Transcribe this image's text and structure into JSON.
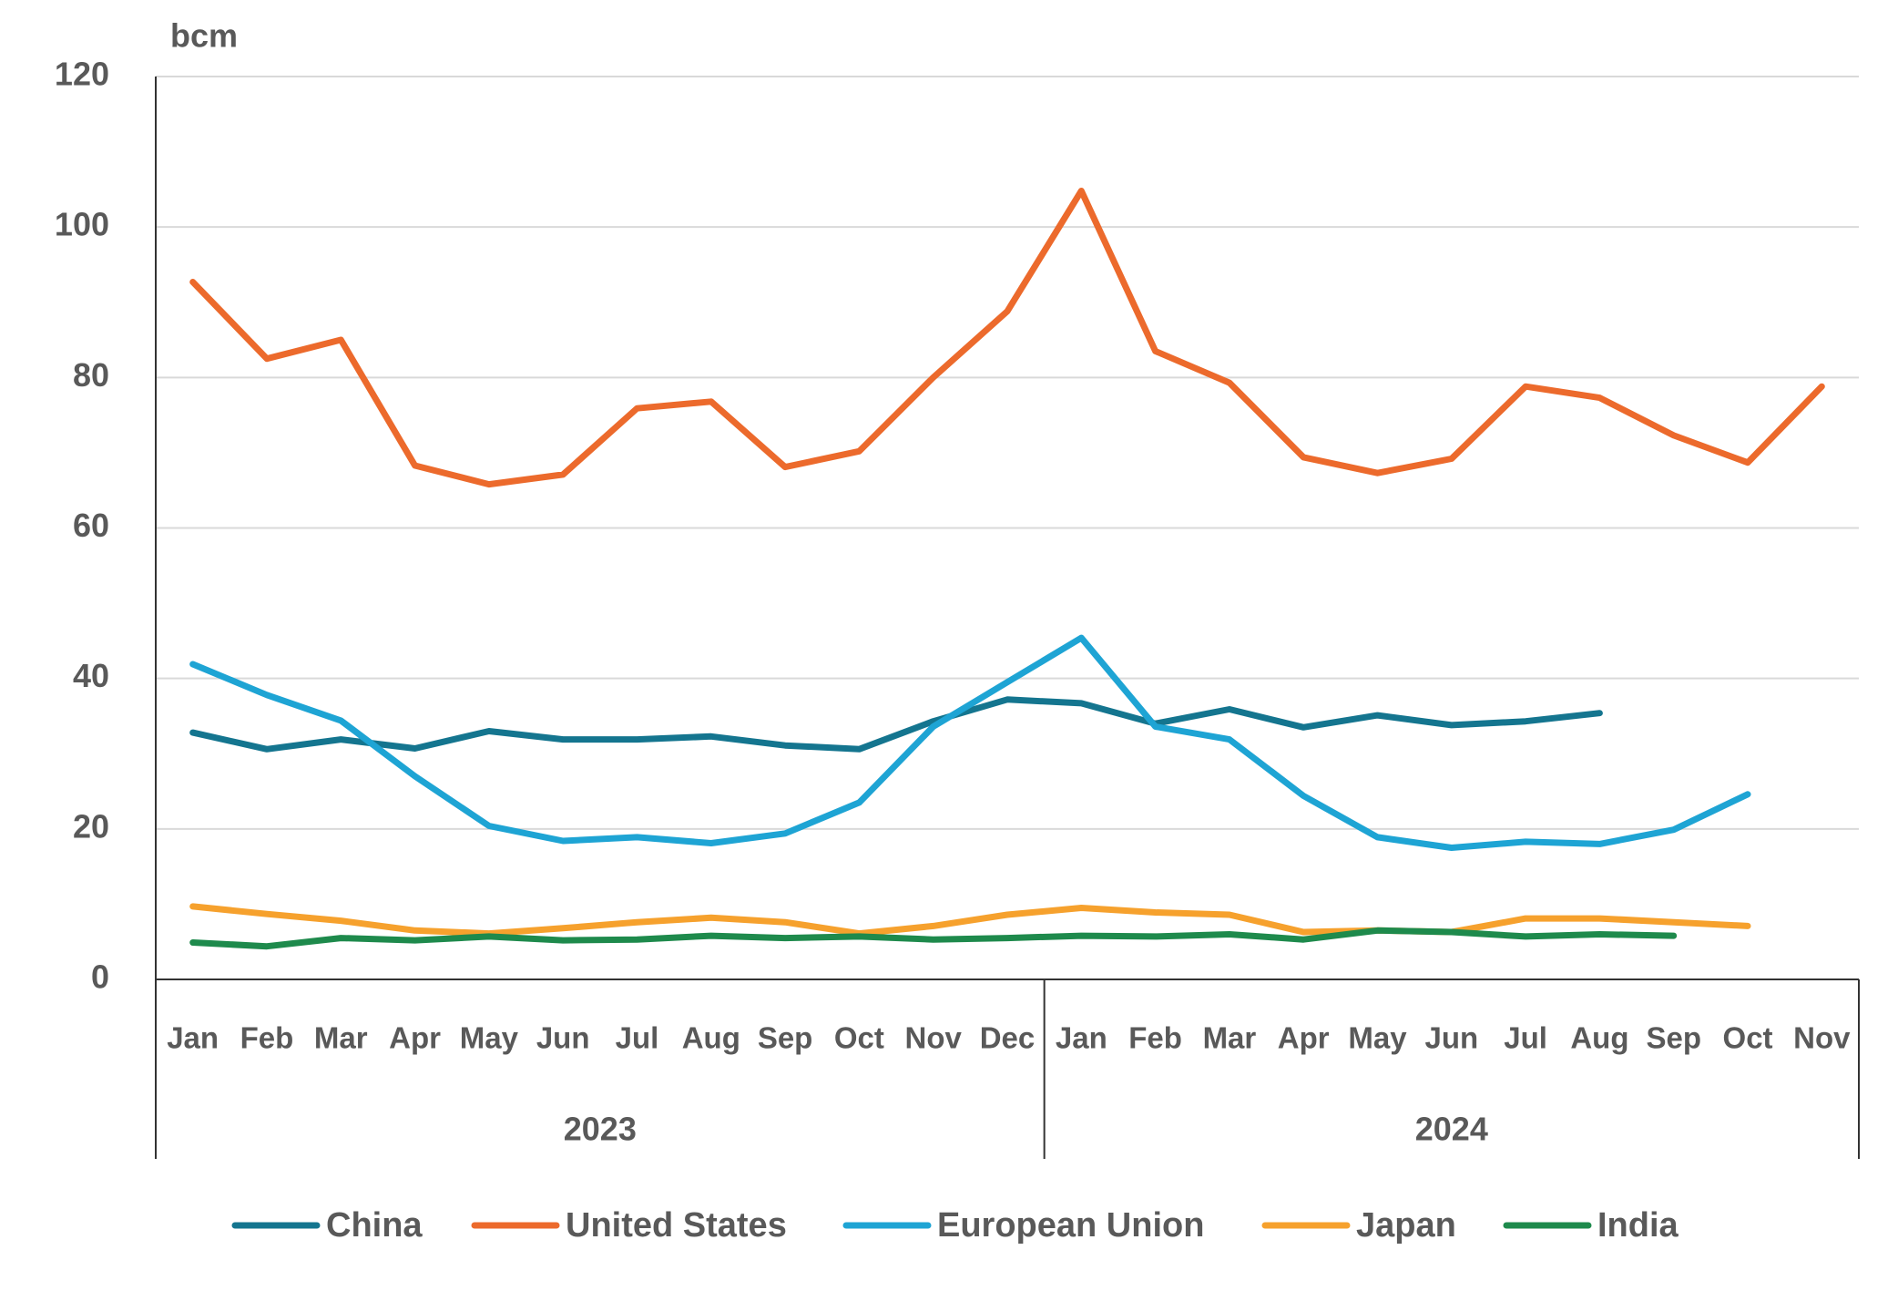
{
  "chart_data": {
    "type": "line",
    "y_unit": "bcm",
    "groups": [
      {
        "label": "2023",
        "categories": [
          "Jan",
          "Feb",
          "Mar",
          "Apr",
          "May",
          "Jun",
          "Jul",
          "Aug",
          "Sep",
          "Oct",
          "Nov",
          "Dec"
        ]
      },
      {
        "label": "2024",
        "categories": [
          "Jan",
          "Feb",
          "Mar",
          "Apr",
          "May",
          "Jun",
          "Jul",
          "Aug",
          "Sep",
          "Oct",
          "Nov"
        ]
      }
    ],
    "series": [
      {
        "name": "China",
        "color": "#14758f",
        "values": [
          32.8,
          30.6,
          31.9,
          30.7,
          33,
          31.9,
          31.9,
          32.3,
          31.1,
          30.6,
          34.3,
          37.2,
          36.7,
          34,
          35.9,
          33.5,
          35.1,
          33.8,
          34.3,
          35.4,
          null,
          null,
          null
        ]
      },
      {
        "name": "United States",
        "color": "#ec6a2c",
        "values": [
          92.7,
          82.5,
          85,
          68.3,
          65.8,
          67.1,
          75.9,
          76.8,
          68.1,
          70.2,
          80,
          88.8,
          104.8,
          83.5,
          79.3,
          69.4,
          67.3,
          69.2,
          78.8,
          77.3,
          72.3,
          68.7,
          78.8
        ]
      },
      {
        "name": "European Union",
        "color": "#1ea4d4",
        "values": [
          41.9,
          37.8,
          34.4,
          27,
          20.4,
          18.4,
          18.9,
          18.1,
          19.4,
          23.5,
          33.6,
          39.5,
          45.4,
          33.6,
          31.9,
          24.4,
          18.9,
          17.5,
          18.3,
          18,
          19.9,
          24.6,
          null
        ]
      },
      {
        "name": "Japan",
        "color": "#f6a12d",
        "values": [
          9.7,
          8.7,
          7.8,
          6.5,
          6.1,
          6.8,
          7.6,
          8.2,
          7.6,
          6.1,
          7.1,
          8.6,
          9.5,
          8.9,
          8.6,
          6.3,
          6.5,
          6.3,
          8.1,
          8.1,
          7.6,
          7.1,
          null
        ]
      },
      {
        "name": "India",
        "color": "#1e8a4c",
        "values": [
          4.9,
          4.4,
          5.5,
          5.2,
          5.7,
          5.2,
          5.3,
          5.8,
          5.5,
          5.7,
          5.3,
          5.5,
          5.8,
          5.7,
          6,
          5.3,
          6.5,
          6.3,
          5.7,
          6,
          5.8,
          null,
          null
        ]
      }
    ],
    "ylim": [
      0,
      120
    ],
    "yticks": [
      0,
      20,
      40,
      60,
      80,
      100,
      120
    ],
    "grid": true,
    "legend": "bottom"
  }
}
